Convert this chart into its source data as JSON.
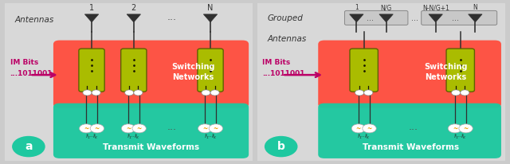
{
  "fig_width": 6.4,
  "fig_height": 2.06,
  "bg_color": "#cbcbcb",
  "panel_bg": "#d8d8d8",
  "red_box_color": "#FF5040",
  "teal_box_color": "#1EC8A0",
  "yellow_switch_color": "#AABC00",
  "yellow_switch_edge": "#606000",
  "im_bits_color": "#BB0066",
  "label_a": "a",
  "label_b": "b",
  "panel_a_title": "Antennas",
  "panel_b_title_1": "Grouped",
  "panel_b_title_2": "Antennas",
  "im_bits_line1": "IM Bits",
  "im_bits_line2": "...1011001",
  "switching_text": "Switching\nNetworks",
  "waveform_label": "Transmit Waveforms",
  "ant_color": "#303030",
  "wave_color": "#E8A000"
}
